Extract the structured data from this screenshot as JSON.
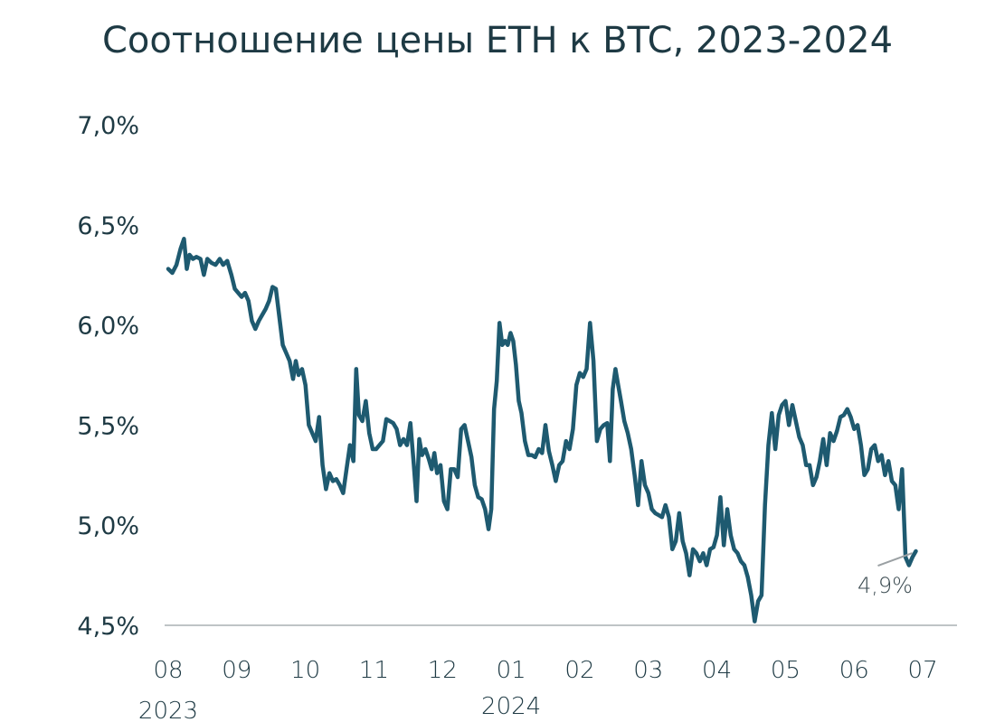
{
  "chart_data": {
    "type": "line",
    "title": "Соотношение цены ETH к BTC, 2023-2024",
    "ylim": [
      4.5,
      7.0
    ],
    "yticks": [
      "7,0%",
      "6,5%",
      "6,0%",
      "5,5%",
      "5,0%",
      "4,5%"
    ],
    "xticks": [
      "08",
      "09",
      "10",
      "11",
      "12",
      "01",
      "02",
      "03",
      "04",
      "05",
      "06",
      "07"
    ],
    "year_labels": [
      "2023",
      "2024"
    ],
    "annotation": "4,9%",
    "colors": {
      "line": "#1e5a70",
      "axis": "#bfc4c6",
      "text": "#1e3a44",
      "annotation_line": "#9aa0a3"
    },
    "series": [
      {
        "values": [
          [
            0.0,
            6.28
          ],
          [
            0.06,
            6.26
          ],
          [
            0.12,
            6.3
          ],
          [
            0.18,
            6.38
          ],
          [
            0.23,
            6.43
          ],
          [
            0.27,
            6.28
          ],
          [
            0.31,
            6.35
          ],
          [
            0.36,
            6.33
          ],
          [
            0.41,
            6.34
          ],
          [
            0.47,
            6.33
          ],
          [
            0.52,
            6.25
          ],
          [
            0.57,
            6.33
          ],
          [
            0.63,
            6.31
          ],
          [
            0.69,
            6.3
          ],
          [
            0.75,
            6.33
          ],
          [
            0.8,
            6.3
          ],
          [
            0.86,
            6.32
          ],
          [
            0.92,
            6.25
          ],
          [
            0.97,
            6.18
          ],
          [
            1.02,
            6.16
          ],
          [
            1.07,
            6.14
          ],
          [
            1.12,
            6.16
          ],
          [
            1.17,
            6.12
          ],
          [
            1.22,
            6.02
          ],
          [
            1.27,
            5.98
          ],
          [
            1.32,
            6.02
          ],
          [
            1.37,
            6.05
          ],
          [
            1.42,
            6.08
          ],
          [
            1.47,
            6.12
          ],
          [
            1.52,
            6.19
          ],
          [
            1.57,
            6.18
          ],
          [
            1.62,
            6.04
          ],
          [
            1.67,
            5.9
          ],
          [
            1.72,
            5.86
          ],
          [
            1.77,
            5.82
          ],
          [
            1.82,
            5.73
          ],
          [
            1.86,
            5.82
          ],
          [
            1.9,
            5.75
          ],
          [
            1.95,
            5.78
          ],
          [
            2.0,
            5.7
          ],
          [
            2.05,
            5.5
          ],
          [
            2.1,
            5.46
          ],
          [
            2.15,
            5.42
          ],
          [
            2.2,
            5.54
          ],
          [
            2.25,
            5.3
          ],
          [
            2.3,
            5.18
          ],
          [
            2.35,
            5.26
          ],
          [
            2.4,
            5.22
          ],
          [
            2.45,
            5.23
          ],
          [
            2.5,
            5.2
          ],
          [
            2.55,
            5.16
          ],
          [
            2.6,
            5.28
          ],
          [
            2.65,
            5.4
          ],
          [
            2.7,
            5.32
          ],
          [
            2.74,
            5.78
          ],
          [
            2.78,
            5.55
          ],
          [
            2.83,
            5.52
          ],
          [
            2.88,
            5.62
          ],
          [
            2.93,
            5.46
          ],
          [
            2.98,
            5.38
          ],
          [
            3.03,
            5.38
          ],
          [
            3.08,
            5.4
          ],
          [
            3.13,
            5.42
          ],
          [
            3.18,
            5.53
          ],
          [
            3.23,
            5.52
          ],
          [
            3.28,
            5.51
          ],
          [
            3.33,
            5.48
          ],
          [
            3.38,
            5.4
          ],
          [
            3.43,
            5.43
          ],
          [
            3.48,
            5.4
          ],
          [
            3.53,
            5.51
          ],
          [
            3.58,
            5.3
          ],
          [
            3.62,
            5.12
          ],
          [
            3.66,
            5.43
          ],
          [
            3.7,
            5.35
          ],
          [
            3.75,
            5.38
          ],
          [
            3.8,
            5.33
          ],
          [
            3.84,
            5.28
          ],
          [
            3.88,
            5.36
          ],
          [
            3.92,
            5.26
          ],
          [
            3.97,
            5.3
          ],
          [
            4.02,
            5.12
          ],
          [
            4.07,
            5.08
          ],
          [
            4.12,
            5.28
          ],
          [
            4.17,
            5.28
          ],
          [
            4.22,
            5.24
          ],
          [
            4.27,
            5.48
          ],
          [
            4.32,
            5.5
          ],
          [
            4.37,
            5.42
          ],
          [
            4.42,
            5.34
          ],
          [
            4.47,
            5.2
          ],
          [
            4.52,
            5.14
          ],
          [
            4.57,
            5.13
          ],
          [
            4.62,
            5.08
          ],
          [
            4.67,
            4.98
          ],
          [
            4.71,
            5.08
          ],
          [
            4.75,
            5.58
          ],
          [
            4.79,
            5.72
          ],
          [
            4.83,
            6.01
          ],
          [
            4.87,
            5.9
          ],
          [
            4.91,
            5.92
          ],
          [
            4.95,
            5.9
          ],
          [
            4.99,
            5.96
          ],
          [
            5.03,
            5.92
          ],
          [
            5.07,
            5.8
          ],
          [
            5.11,
            5.62
          ],
          [
            5.15,
            5.56
          ],
          [
            5.2,
            5.42
          ],
          [
            5.25,
            5.35
          ],
          [
            5.3,
            5.35
          ],
          [
            5.35,
            5.34
          ],
          [
            5.4,
            5.38
          ],
          [
            5.45,
            5.36
          ],
          [
            5.5,
            5.5
          ],
          [
            5.55,
            5.37
          ],
          [
            5.6,
            5.3
          ],
          [
            5.65,
            5.22
          ],
          [
            5.7,
            5.3
          ],
          [
            5.75,
            5.32
          ],
          [
            5.8,
            5.42
          ],
          [
            5.85,
            5.38
          ],
          [
            5.9,
            5.48
          ],
          [
            5.95,
            5.7
          ],
          [
            6.0,
            5.76
          ],
          [
            6.05,
            5.74
          ],
          [
            6.1,
            5.78
          ],
          [
            6.15,
            6.01
          ],
          [
            6.2,
            5.82
          ],
          [
            6.25,
            5.42
          ],
          [
            6.3,
            5.48
          ],
          [
            6.35,
            5.5
          ],
          [
            6.4,
            5.51
          ],
          [
            6.44,
            5.32
          ],
          [
            6.48,
            5.68
          ],
          [
            6.52,
            5.78
          ],
          [
            6.56,
            5.7
          ],
          [
            6.6,
            5.62
          ],
          [
            6.65,
            5.52
          ],
          [
            6.7,
            5.46
          ],
          [
            6.75,
            5.38
          ],
          [
            6.8,
            5.25
          ],
          [
            6.85,
            5.1
          ],
          [
            6.9,
            5.32
          ],
          [
            6.95,
            5.2
          ],
          [
            7.0,
            5.16
          ],
          [
            7.05,
            5.08
          ],
          [
            7.1,
            5.06
          ],
          [
            7.15,
            5.05
          ],
          [
            7.2,
            5.04
          ],
          [
            7.25,
            5.1
          ],
          [
            7.3,
            5.04
          ],
          [
            7.35,
            4.88
          ],
          [
            7.4,
            4.92
          ],
          [
            7.45,
            5.06
          ],
          [
            7.5,
            4.92
          ],
          [
            7.55,
            4.86
          ],
          [
            7.6,
            4.75
          ],
          [
            7.65,
            4.88
          ],
          [
            7.7,
            4.86
          ],
          [
            7.75,
            4.82
          ],
          [
            7.8,
            4.86
          ],
          [
            7.85,
            4.8
          ],
          [
            7.9,
            4.88
          ],
          [
            7.95,
            4.89
          ],
          [
            8.0,
            4.95
          ],
          [
            8.05,
            5.14
          ],
          [
            8.1,
            4.9
          ],
          [
            8.15,
            5.08
          ],
          [
            8.2,
            4.95
          ],
          [
            8.25,
            4.88
          ],
          [
            8.3,
            4.86
          ],
          [
            8.35,
            4.82
          ],
          [
            8.4,
            4.8
          ],
          [
            8.45,
            4.74
          ],
          [
            8.5,
            4.65
          ],
          [
            8.55,
            4.52
          ],
          [
            8.6,
            4.62
          ],
          [
            8.65,
            4.65
          ],
          [
            8.7,
            5.1
          ],
          [
            8.75,
            5.4
          ],
          [
            8.8,
            5.56
          ],
          [
            8.85,
            5.38
          ],
          [
            8.9,
            5.55
          ],
          [
            8.95,
            5.6
          ],
          [
            9.0,
            5.62
          ],
          [
            9.05,
            5.5
          ],
          [
            9.1,
            5.6
          ],
          [
            9.15,
            5.52
          ],
          [
            9.2,
            5.44
          ],
          [
            9.25,
            5.4
          ],
          [
            9.3,
            5.3
          ],
          [
            9.35,
            5.3
          ],
          [
            9.4,
            5.2
          ],
          [
            9.45,
            5.24
          ],
          [
            9.5,
            5.32
          ],
          [
            9.55,
            5.43
          ],
          [
            9.6,
            5.3
          ],
          [
            9.65,
            5.46
          ],
          [
            9.7,
            5.42
          ],
          [
            9.75,
            5.47
          ],
          [
            9.8,
            5.54
          ],
          [
            9.85,
            5.55
          ],
          [
            9.9,
            5.58
          ],
          [
            9.95,
            5.54
          ],
          [
            10.0,
            5.48
          ],
          [
            10.05,
            5.5
          ],
          [
            10.1,
            5.4
          ],
          [
            10.15,
            5.25
          ],
          [
            10.2,
            5.28
          ],
          [
            10.25,
            5.38
          ],
          [
            10.3,
            5.4
          ],
          [
            10.35,
            5.32
          ],
          [
            10.4,
            5.35
          ],
          [
            10.45,
            5.25
          ],
          [
            10.5,
            5.32
          ],
          [
            10.55,
            5.22
          ],
          [
            10.6,
            5.2
          ],
          [
            10.65,
            5.08
          ],
          [
            10.7,
            5.28
          ],
          [
            10.75,
            4.84
          ],
          [
            10.8,
            4.8
          ],
          [
            10.85,
            4.84
          ],
          [
            10.9,
            4.87
          ]
        ]
      }
    ]
  }
}
